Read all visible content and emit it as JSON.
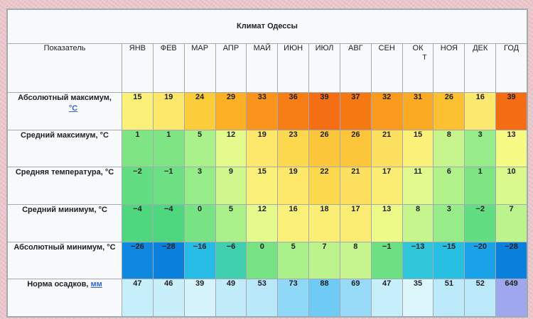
{
  "title": "Климат Одессы",
  "header": {
    "param_label": "Показатель",
    "months": [
      "ЯНВ",
      "ФЕВ",
      "МАР",
      "АПР",
      "МАЙ",
      "ИЮН",
      "ИЮЛ",
      "АВГ",
      "СЕН",
      "ОК",
      "НОЯ",
      "ДЕК",
      "ГОД"
    ],
    "oct_tail": "Т"
  },
  "rows": [
    {
      "label": "Абсолютный максимум,",
      "unit": "°C",
      "values": [
        "15",
        "19",
        "24",
        "29",
        "33",
        "36",
        "39",
        "37",
        "32",
        "31",
        "26",
        "16",
        "39"
      ],
      "colors": [
        "#fbf179",
        "#fde86c",
        "#fccc3a",
        "#fcb026",
        "#fb941c",
        "#f77e17",
        "#f46e13",
        "#f57913",
        "#fb9a1e",
        "#fbaa24",
        "#fcc132",
        "#fde96f",
        "#f46d13"
      ]
    },
    {
      "label": "Средний максимум,",
      "unit": "°C",
      "values": [
        "1",
        "1",
        "5",
        "12",
        "19",
        "23",
        "26",
        "26",
        "21",
        "15",
        "8",
        "3",
        "13"
      ],
      "colors": [
        "#7fe484",
        "#7fe484",
        "#aaf08b",
        "#e4fa8c",
        "#fde86c",
        "#fcd84f",
        "#fcc63b",
        "#fcc63b",
        "#fde060",
        "#fbf179",
        "#c6f58d",
        "#95ec88",
        "#f5fb85"
      ]
    },
    {
      "label": "Средняя температура,",
      "unit": "°C",
      "values": [
        "−2",
        "−1",
        "3",
        "9",
        "15",
        "19",
        "22",
        "21",
        "17",
        "11",
        "6",
        "1",
        "10"
      ],
      "colors": [
        "#62dd81",
        "#6ce083",
        "#95ec88",
        "#d0f78d",
        "#fbf179",
        "#fde86c",
        "#fcd84f",
        "#fde060",
        "#fbec73",
        "#e2f98d",
        "#b2f28b",
        "#7fe484",
        "#d9f88d"
      ]
    },
    {
      "label": "Средний минимум,",
      "unit": "°C",
      "values": [
        "−4",
        "−4",
        "0",
        "5",
        "12",
        "16",
        "18",
        "17",
        "13",
        "8",
        "3",
        "−2",
        "7"
      ],
      "colors": [
        "#4fd77f",
        "#4fd77f",
        "#77e384",
        "#aaf08b",
        "#e4fa8c",
        "#fbf179",
        "#fbee74",
        "#fbec73",
        "#eefa88",
        "#c6f58d",
        "#95ec88",
        "#62dd81",
        "#bcf38c"
      ]
    },
    {
      "label": "Абсолютный минимум,",
      "unit": "°C",
      "values": [
        "−26",
        "−28",
        "−16",
        "−6",
        "0",
        "5",
        "7",
        "8",
        "−1",
        "−13",
        "−15",
        "−20",
        "−28"
      ],
      "colors": [
        "#0f88e0",
        "#0b7fdc",
        "#26bce6",
        "#40d0b0",
        "#77e384",
        "#aaf08b",
        "#bcf38c",
        "#c6f58d",
        "#6ce083",
        "#2ec6d8",
        "#28c0e2",
        "#1aa3e8",
        "#0b7fdc"
      ]
    },
    {
      "label": "Норма осадков,",
      "unit": "мм",
      "values": [
        "47",
        "46",
        "39",
        "49",
        "53",
        "73",
        "88",
        "69",
        "47",
        "35",
        "51",
        "52",
        "649"
      ],
      "colors": [
        "#c7eefb",
        "#c9effb",
        "#d6f4fc",
        "#c3ecfb",
        "#b9e8fa",
        "#8fd8f8",
        "#6fcbf6",
        "#97dbf8",
        "#c7eefb",
        "#ddf6fc",
        "#bdeafa",
        "#bbe9fa",
        "#9fa7ef"
      ]
    }
  ]
}
